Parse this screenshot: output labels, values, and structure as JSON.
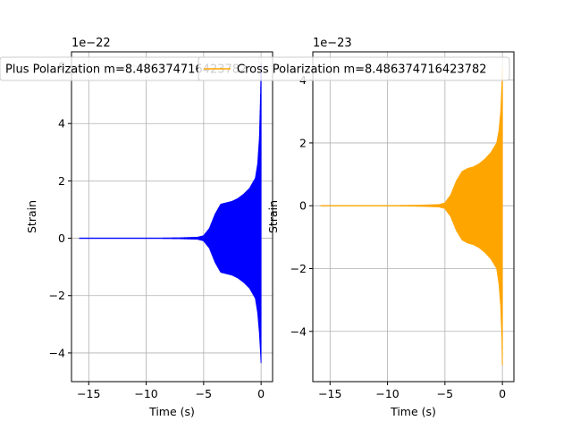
{
  "chart_data": [
    {
      "type": "line",
      "xlabel": "Time (s)",
      "ylabel": "Strain",
      "y_offset_label": "1e−22",
      "xlim": [
        -16.5,
        1.0
      ],
      "ylim": [
        -5.0,
        6.5
      ],
      "x_ticks": [
        -15,
        -10,
        -5,
        0
      ],
      "x_tick_labels": [
        "−15",
        "−10",
        "−5",
        "0"
      ],
      "y_ticks": [
        -4,
        -2,
        0,
        2,
        4,
        6
      ],
      "y_tick_labels": [
        "−4",
        "−2",
        "0",
        "2",
        "4",
        "6"
      ],
      "grid": true,
      "legend_placement": "top",
      "color": "#0000ff",
      "series": [
        {
          "name": "Plus Polarization m=8.486374716423782",
          "x": [
            -15.8,
            -15.0,
            -13.0,
            -11.0,
            -9.0,
            -7.0,
            -5.5,
            -5.0,
            -4.5,
            -4.0,
            -3.5,
            -3.0,
            -2.5,
            -2.0,
            -1.5,
            -1.0,
            -0.5,
            -0.3,
            -0.15,
            -0.05,
            0.0
          ],
          "envelope_upper": [
            0.02,
            0.02,
            0.02,
            0.02,
            0.02,
            0.03,
            0.05,
            0.1,
            0.35,
            0.85,
            1.2,
            1.25,
            1.3,
            1.4,
            1.55,
            1.75,
            2.1,
            2.6,
            3.5,
            5.0,
            6.1
          ],
          "envelope_lower": [
            -0.02,
            -0.02,
            -0.02,
            -0.02,
            -0.02,
            -0.03,
            -0.05,
            -0.1,
            -0.35,
            -0.85,
            -1.2,
            -1.25,
            -1.3,
            -1.4,
            -1.55,
            -1.75,
            -2.1,
            -2.6,
            -3.3,
            -4.0,
            -4.4
          ]
        }
      ]
    },
    {
      "type": "line",
      "xlabel": "Time (s)",
      "ylabel": "Strain",
      "y_offset_label": "1e−23",
      "xlim": [
        -16.5,
        1.0
      ],
      "ylim": [
        -5.6,
        4.9
      ],
      "x_ticks": [
        -15,
        -10,
        -5,
        0
      ],
      "x_tick_labels": [
        "−15",
        "−10",
        "−5",
        "0"
      ],
      "y_ticks": [
        -4,
        -2,
        0,
        2,
        4
      ],
      "y_tick_labels": [
        "−4",
        "−2",
        "0",
        "2",
        "4"
      ],
      "grid": true,
      "legend_placement": "top",
      "color": "#ffa500",
      "series": [
        {
          "name": "Cross Polarization m=8.486374716423782",
          "x": [
            -15.8,
            -15.0,
            -13.0,
            -11.0,
            -9.0,
            -7.0,
            -5.5,
            -5.0,
            -4.5,
            -4.0,
            -3.5,
            -3.0,
            -2.5,
            -2.0,
            -1.5,
            -1.0,
            -0.5,
            -0.3,
            -0.15,
            -0.05,
            0.0
          ],
          "envelope_upper": [
            0.02,
            0.02,
            0.02,
            0.02,
            0.02,
            0.03,
            0.05,
            0.1,
            0.35,
            0.8,
            1.1,
            1.2,
            1.25,
            1.35,
            1.5,
            1.7,
            2.0,
            2.4,
            3.0,
            3.8,
            4.4
          ],
          "envelope_lower": [
            -0.02,
            -0.02,
            -0.02,
            -0.02,
            -0.02,
            -0.03,
            -0.05,
            -0.1,
            -0.35,
            -0.8,
            -1.1,
            -1.2,
            -1.25,
            -1.35,
            -1.5,
            -1.7,
            -2.0,
            -2.5,
            -3.2,
            -4.2,
            -5.2
          ]
        }
      ]
    }
  ]
}
